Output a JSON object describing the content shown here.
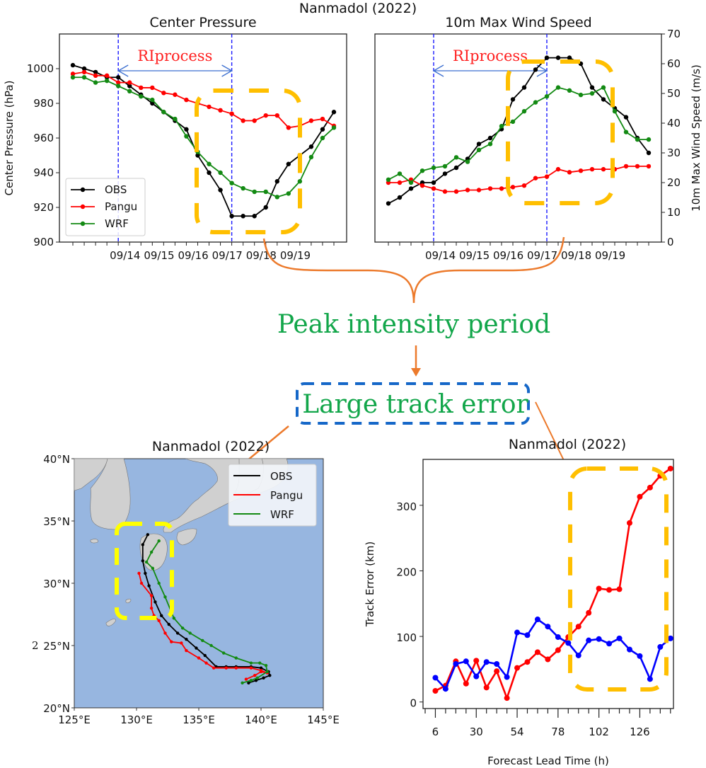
{
  "suptitle": "Nanmadol (2022)",
  "colors": {
    "obs": "#000000",
    "pangu": "#ff0000",
    "wrf": "#138a13",
    "track_blue": "#0000ff",
    "ri_line": "#1a1aff",
    "ri_arrow": "#3c6fd0",
    "ri_text": "#ff2020",
    "highlight_orange": "#ffbf00",
    "highlight_yellow": "#ffff00",
    "connector": "#ec7a2c",
    "annotation_green": "#12a64a",
    "track_box_blue": "#1567c8",
    "ocean": "#97b6e0",
    "land": "#d0d0d0"
  },
  "annotations": {
    "peak": "Peak intensity period",
    "large_error": "Large track error"
  },
  "chart_data": [
    {
      "id": "pressure",
      "type": "line",
      "title": "Center Pressure",
      "xlabel": "",
      "ylabel": "Center Pressure (hPa)",
      "ylim": [
        900,
        1020
      ],
      "yticks": [
        900,
        920,
        940,
        960,
        980,
        1000
      ],
      "xticks": [
        {
          "label": "09/14",
          "pos": 4.6
        },
        {
          "label": "09/15",
          "pos": 7.6
        },
        {
          "label": "09/16",
          "pos": 10.6
        },
        {
          "label": "09/17",
          "pos": 13.6
        },
        {
          "label": "09/18",
          "pos": 16.6
        },
        {
          "label": "09/19",
          "pos": 19.6
        }
      ],
      "ri_process": {
        "label": "RIprocess",
        "start": 4,
        "end": 14
      },
      "series": [
        {
          "name": "OBS",
          "values": [
            1002,
            1000,
            998,
            995,
            995,
            990,
            985,
            980,
            975,
            970,
            965,
            950,
            940,
            930,
            915,
            915,
            915,
            920,
            935,
            945,
            950,
            955,
            965,
            975
          ]
        },
        {
          "name": "Pangu",
          "values": [
            997,
            998,
            996,
            996,
            992,
            992,
            989,
            989,
            986,
            985,
            982,
            980,
            978,
            976,
            974,
            970,
            970,
            973,
            973,
            966,
            967,
            970,
            971,
            967
          ]
        },
        {
          "name": "WRF",
          "values": [
            995,
            995,
            992,
            993,
            990,
            987,
            984,
            982,
            975,
            971,
            961,
            952,
            945,
            940,
            934,
            931,
            929,
            929,
            926,
            928,
            935,
            949,
            960,
            966
          ]
        }
      ],
      "legend": [
        "OBS",
        "Pangu",
        "WRF"
      ],
      "legend_loc": "lower-left"
    },
    {
      "id": "wind",
      "type": "line",
      "title": "10m Max Wind Speed",
      "xlabel": "",
      "ylabel": "10m Max Wind Speed (m/s)",
      "ylim": [
        0,
        70
      ],
      "yticks": [
        0,
        10,
        20,
        30,
        40,
        50,
        60,
        70
      ],
      "xticks": [
        {
          "label": "09/14",
          "pos": 4.6
        },
        {
          "label": "09/15",
          "pos": 7.6
        },
        {
          "label": "09/16",
          "pos": 10.6
        },
        {
          "label": "09/17",
          "pos": 13.6
        },
        {
          "label": "09/18",
          "pos": 16.6
        },
        {
          "label": "09/19",
          "pos": 19.6
        }
      ],
      "ri_process": {
        "label": "RIprocess",
        "start": 4,
        "end": 14
      },
      "series": [
        {
          "name": "OBS",
          "values": [
            13,
            15,
            18,
            20,
            20,
            23,
            25,
            28,
            33,
            35,
            38,
            48,
            52,
            58,
            62,
            62,
            62,
            60,
            52,
            48,
            45,
            42,
            35,
            30
          ]
        },
        {
          "name": "Pangu",
          "values": [
            20,
            20,
            21,
            19,
            18,
            17,
            17,
            17.5,
            17.5,
            18,
            18,
            18.5,
            19,
            21.5,
            22,
            24.5,
            23.5,
            24,
            24.5,
            24.5,
            24.5,
            25.5,
            25.5,
            25.5
          ]
        },
        {
          "name": "WRF",
          "values": [
            21,
            23,
            20,
            24,
            25,
            25.5,
            28.5,
            27,
            31,
            33,
            39,
            40.5,
            44,
            47,
            49,
            52,
            51,
            49.5,
            50,
            52,
            44,
            37,
            34.5,
            34.5
          ]
        }
      ]
    },
    {
      "id": "track_map",
      "type": "line",
      "title": "Nanmadol (2022)",
      "xlim": [
        125,
        145
      ],
      "ylim": [
        20,
        40
      ],
      "xticks": [
        "125°E",
        "130°E",
        "135°E",
        "140°E",
        "145°E"
      ],
      "yticks": [
        "20°N",
        "25°N",
        "30°N",
        "35°N",
        "40°N"
      ],
      "legend": [
        "OBS",
        "Pangu",
        "WRF"
      ],
      "legend_loc": "upper-right",
      "series": [
        {
          "name": "OBS",
          "lon": [
            139.0,
            139.6,
            140.2,
            140.7,
            140.6,
            140.0,
            139.2,
            138.0,
            137.2,
            136.4,
            135.5,
            134.8,
            134.0,
            133.3,
            132.6,
            132.0,
            131.5,
            131.0,
            130.7,
            130.5,
            130.5,
            130.9
          ],
          "lat": [
            22.0,
            22.2,
            22.4,
            22.6,
            22.9,
            23.2,
            23.3,
            23.3,
            23.3,
            23.3,
            24.2,
            24.8,
            25.5,
            26.0,
            26.7,
            27.4,
            28.5,
            29.8,
            30.8,
            31.8,
            33.1,
            33.9
          ]
        },
        {
          "name": "Pangu",
          "lon": [
            138.8,
            139.5,
            140.0,
            140.5,
            140.0,
            139.2,
            138.0,
            137.2,
            136.2,
            135.6,
            135.0,
            134.0,
            133.6,
            132.8,
            132.3,
            131.8,
            131.4,
            131.2,
            131.2,
            130.4,
            130.2
          ],
          "lat": [
            22.3,
            22.6,
            22.9,
            22.8,
            23.0,
            23.2,
            23.2,
            23.2,
            23.2,
            23.6,
            24.0,
            24.6,
            25.2,
            25.3,
            26.0,
            27.0,
            27.4,
            28.0,
            29.0,
            30.0,
            30.8
          ]
        },
        {
          "name": "WRF",
          "lon": [
            138.5,
            139.2,
            139.7,
            140.5,
            140.4,
            139.9,
            139.2,
            138.0,
            137.0,
            136.0,
            135.3,
            134.3,
            133.7,
            133.0,
            132.3,
            131.8,
            131.3,
            130.8,
            131.2,
            131.8
          ],
          "lat": [
            22.0,
            22.2,
            22.4,
            22.9,
            23.4,
            23.6,
            23.6,
            24.0,
            24.4,
            25.0,
            25.4,
            26.0,
            26.4,
            27.2,
            28.9,
            30.0,
            31.2,
            31.7,
            32.5,
            33.4
          ]
        }
      ]
    },
    {
      "id": "track_error",
      "type": "line",
      "title": "Nanmadol (2022)",
      "xlabel": "Forecast Lead Time (h)",
      "ylabel": "Track Error (km)",
      "xlim": [
        0,
        147
      ],
      "ylim": [
        -10,
        370
      ],
      "xticks": [
        6,
        30,
        54,
        78,
        102,
        126
      ],
      "yticks": [
        0,
        100,
        200,
        300
      ],
      "x": [
        6,
        12,
        18,
        24,
        30,
        36,
        42,
        48,
        54,
        60,
        66,
        72,
        78,
        84,
        90,
        96,
        102,
        108,
        114,
        120,
        126,
        132,
        138,
        144
      ],
      "series": [
        {
          "name": "Pangu",
          "color_key": "pangu",
          "values": [
            17,
            25,
            62,
            28,
            63,
            22,
            47,
            6,
            52,
            61,
            76,
            65,
            79,
            99,
            115,
            136,
            173,
            171,
            172,
            273,
            313,
            327,
            345,
            356
          ]
        },
        {
          "name": "WRF",
          "color_key": "track_blue",
          "values": [
            37,
            20,
            58,
            62,
            39,
            61,
            58,
            38,
            106,
            102,
            126,
            115,
            99,
            90,
            71,
            94,
            96,
            89,
            97,
            80,
            70,
            35,
            84,
            97
          ]
        }
      ]
    }
  ],
  "stray_marks": {
    "map_left": "2"
  }
}
